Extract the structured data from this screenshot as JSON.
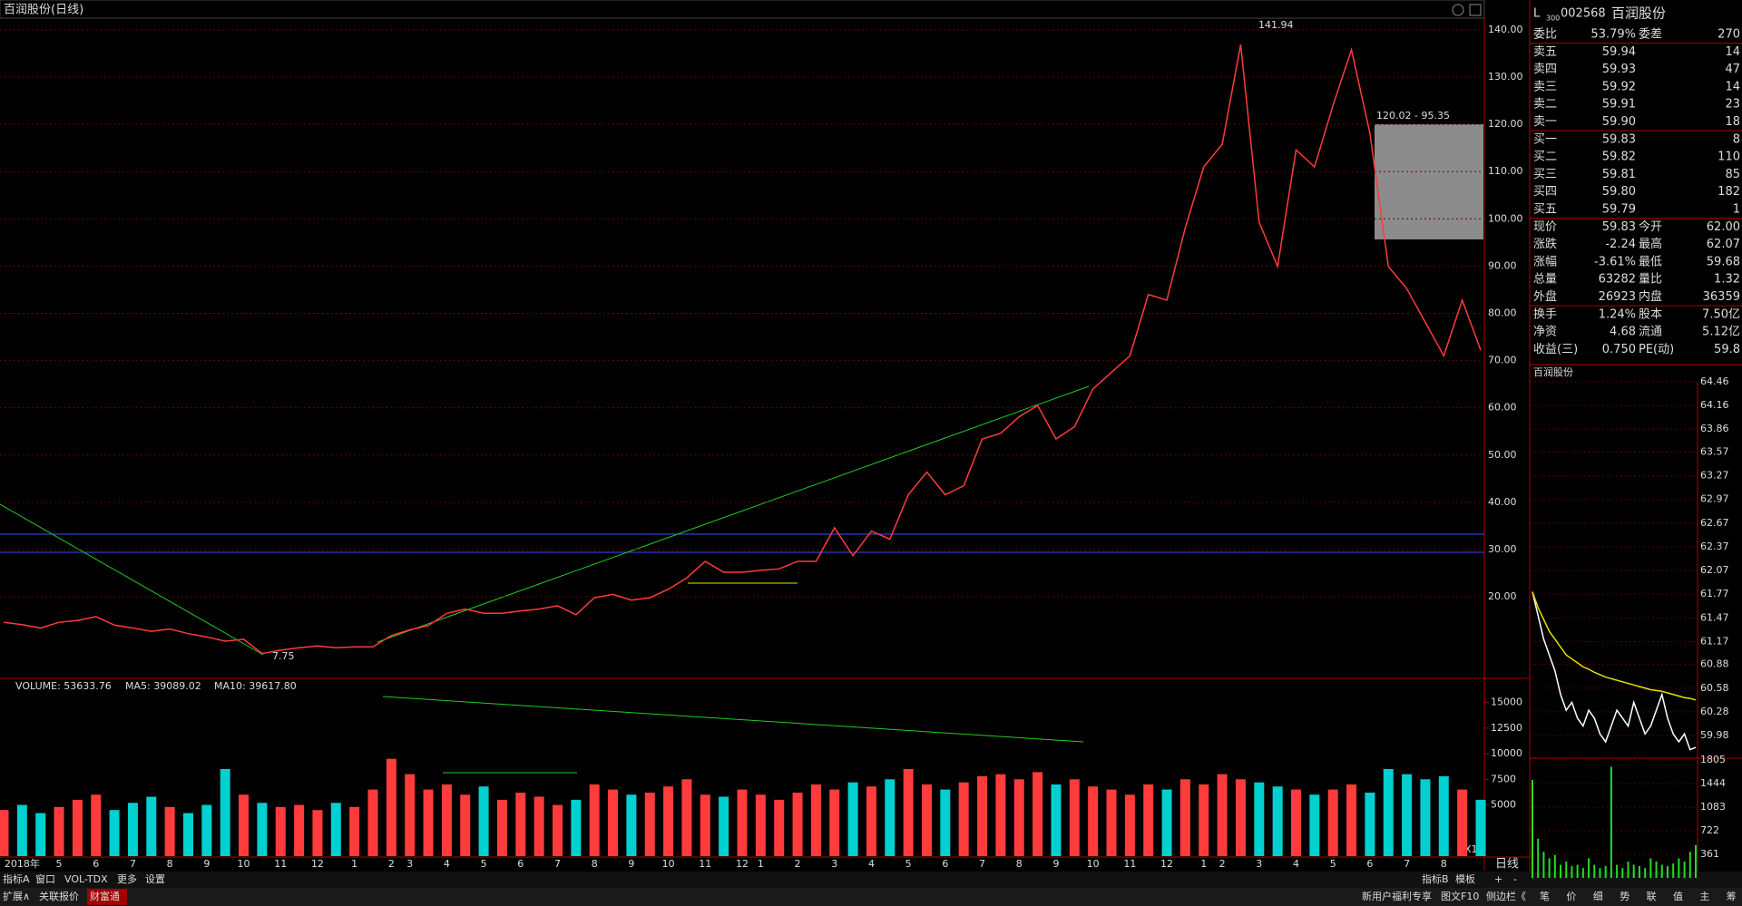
{
  "window_title": "百润股份(日线)",
  "chart_data": [
    {
      "type": "line",
      "color": "#ff3b3b",
      "grid": true,
      "up_color": "#ff3b3b",
      "down_color": "#00d0d0",
      "categories": [
        null,
        "2018年",
        null,
        "5",
        null,
        "6",
        null,
        "7",
        null,
        "8",
        null,
        "9",
        null,
        "10",
        null,
        "11",
        null,
        "12",
        null,
        "1",
        null,
        "2",
        "3",
        null,
        "4",
        null,
        "5",
        null,
        "6",
        null,
        "7",
        null,
        "8",
        null,
        "9",
        null,
        "10",
        null,
        "11",
        null,
        "12",
        "1",
        null,
        "2",
        null,
        "3",
        null,
        "4",
        null,
        "5",
        null,
        "6",
        null,
        "7",
        null,
        "8",
        null,
        "9",
        null,
        "10",
        null,
        "11",
        null,
        "12",
        null,
        "1",
        "2",
        null,
        "3",
        null,
        "4",
        null,
        "5",
        null,
        "6",
        null,
        "7",
        null,
        "8",
        null,
        null
      ],
      "values": [
        14.6,
        14.1,
        13.4,
        14.6,
        15,
        15.8,
        14,
        13.4,
        12.7,
        13.2,
        12.2,
        11.5,
        10.6,
        11,
        8,
        8.7,
        9.2,
        9.6,
        9.2,
        9.4,
        9.4,
        11.8,
        13,
        13.9,
        16.5,
        17.4,
        16.5,
        16.5,
        17,
        17.4,
        18.1,
        16.2,
        19.8,
        20.5,
        19.3,
        19.8,
        21.6,
        24,
        27.5,
        25.2,
        25.2,
        25.6,
        25.9,
        27.5,
        27.5,
        34.6,
        28.7,
        33.9,
        32.2,
        41.6,
        46.4,
        41.6,
        43.5,
        53.4,
        54.6,
        58.1,
        60.5,
        53.4,
        56,
        64,
        67.5,
        71,
        84,
        82.8,
        98.1,
        111,
        115.8,
        136.9,
        99.3,
        89.9,
        114.6,
        111,
        124,
        135.8,
        118.1,
        89.9,
        85.2,
        78.1,
        71,
        82.8,
        72.2
      ],
      "ylim": [
        3.5,
        142.1
      ],
      "yticks": [
        {
          "value": 20,
          "label": "20.00"
        },
        {
          "value": 30,
          "label": "30.00"
        },
        {
          "value": 40,
          "label": "40.00"
        },
        {
          "value": 50,
          "label": "50.00"
        },
        {
          "value": 60,
          "label": "60.00"
        },
        {
          "value": 70,
          "label": "70.00"
        },
        {
          "value": 80,
          "label": "80.00"
        },
        {
          "value": 90,
          "label": "90.00"
        },
        {
          "value": 100,
          "label": "100.00"
        },
        {
          "value": 110,
          "label": "110.00"
        },
        {
          "value": 120,
          "label": "120.00"
        },
        {
          "value": 130,
          "label": "130.00"
        },
        {
          "value": 140,
          "label": "140.00"
        }
      ],
      "peak_label": "141.94",
      "low_label": "7.75",
      "box_label": "120.02 - 95.35"
    },
    {
      "type": "bar",
      "title": "VOLUME: 53633.76",
      "ma5_label": "MA5: 39089.02",
      "ma10_label": "MA10: 39617.80",
      "scale_label": "X10",
      "values": [
        4500,
        5000,
        4200,
        4800,
        5500,
        6000,
        4500,
        5200,
        5800,
        4800,
        4200,
        5000,
        8500,
        6000,
        5200,
        4800,
        5000,
        4500,
        5200,
        4800,
        6500,
        9500,
        8000,
        6500,
        7000,
        6000,
        6800,
        5500,
        6200,
        5800,
        5000,
        5500,
        7000,
        6500,
        6000,
        6200,
        6800,
        7500,
        6000,
        5800,
        6500,
        6000,
        5500,
        6200,
        7000,
        6500,
        7200,
        6800,
        7500,
        8500,
        7000,
        6500,
        7200,
        7800,
        8000,
        7500,
        8200,
        7000,
        7500,
        6800,
        6500,
        6000,
        7000,
        6500,
        7500,
        7000,
        8000,
        7500,
        7200,
        6800,
        6500,
        6000,
        6500,
        7000,
        6200,
        8500,
        8000,
        7500,
        7800,
        6500,
        5500
      ],
      "ylim": [
        0,
        17000
      ],
      "yticks": [
        5000,
        7500,
        10000,
        12500,
        15000
      ]
    },
    {
      "type": "line",
      "title": "百润股份",
      "series": [
        {
          "color": "#ffffff",
          "values": [
            61.8,
            61.5,
            61.2,
            61.0,
            60.8,
            60.5,
            60.3,
            60.4,
            60.2,
            60.1,
            60.3,
            60.2,
            60.0,
            59.9,
            60.1,
            60.3,
            60.2,
            60.1,
            60.4,
            60.2,
            60.0,
            60.1,
            60.3,
            60.5,
            60.2,
            60.0,
            59.9,
            60.0,
            59.8,
            59.83
          ]
        },
        {
          "color": "#e8e000",
          "values": [
            61.8,
            61.6,
            61.45,
            61.3,
            61.2,
            61.1,
            61.0,
            60.95,
            60.9,
            60.85,
            60.82,
            60.78,
            60.75,
            60.72,
            60.7,
            60.68,
            60.66,
            60.64,
            60.62,
            60.6,
            60.58,
            60.56,
            60.55,
            60.54,
            60.52,
            60.5,
            60.48,
            60.46,
            60.45,
            60.43
          ]
        }
      ],
      "ylim": [
        59.98,
        64.46
      ],
      "yticks": [
        64.46,
        64.16,
        63.86,
        63.57,
        63.27,
        62.97,
        62.67,
        62.37,
        62.07,
        61.77,
        61.47,
        61.17,
        60.88,
        60.58,
        60.28,
        59.98
      ]
    },
    {
      "type": "bar",
      "color": "#22dd22",
      "values": [
        1500,
        600,
        400,
        300,
        350,
        200,
        250,
        180,
        200,
        150,
        300,
        200,
        150,
        180,
        1700,
        200,
        150,
        250,
        200,
        180,
        150,
        300,
        250,
        200,
        180,
        220,
        300,
        250,
        400,
        500
      ],
      "ylim": [
        0,
        1805
      ],
      "yticks": [
        1805,
        1444,
        1083,
        722,
        361
      ]
    }
  ],
  "quote": {
    "market": "L",
    "index": "300",
    "code": "002568",
    "name": "百润股份",
    "ratio": {
      "label": "委比",
      "value": "53.79%",
      "label2": "委差",
      "value2": "270"
    },
    "sell": [
      {
        "label": "卖五",
        "price": "59.94",
        "volume": "14"
      },
      {
        "label": "卖四",
        "price": "59.93",
        "volume": "47"
      },
      {
        "label": "卖三",
        "price": "59.92",
        "volume": "14"
      },
      {
        "label": "卖二",
        "price": "59.91",
        "volume": "23"
      },
      {
        "label": "卖一",
        "price": "59.90",
        "volume": "18"
      }
    ],
    "buy": [
      {
        "label": "买一",
        "price": "59.83",
        "volume": "8"
      },
      {
        "label": "买二",
        "price": "59.82",
        "volume": "110"
      },
      {
        "label": "买三",
        "price": "59.81",
        "volume": "85"
      },
      {
        "label": "买四",
        "price": "59.80",
        "volume": "182"
      },
      {
        "label": "买五",
        "price": "59.79",
        "volume": "1"
      }
    ],
    "stats": [
      {
        "label": "现价",
        "value": "59.83",
        "color": "#22dd22",
        "label2": "今开",
        "value2": "62.00",
        "color2": "#22dd22"
      },
      {
        "label": "涨跌",
        "value": "-2.24",
        "color": "#22dd22",
        "label2": "最高",
        "value2": "62.07",
        "color2": "#ffffff"
      },
      {
        "label": "涨幅",
        "value": "-3.61%",
        "color": "#22dd22",
        "label2": "最低",
        "value2": "59.68",
        "color2": "#22dd22"
      },
      {
        "label": "总量",
        "value": "63282",
        "color": "#e8e000",
        "label2": "量比",
        "value2": "1.32",
        "color2": "#ff3b3b"
      },
      {
        "label": "外盘",
        "value": "26923",
        "color": "#ff3b3b",
        "label2": "内盘",
        "value2": "36359",
        "color2": "#22dd22"
      },
      {
        "label": "换手",
        "value": "1.24%",
        "color": "#ffffff",
        "label2": "股本",
        "value2": "7.50亿",
        "color2": "#ffffff"
      },
      {
        "label": "净资",
        "value": "4.68",
        "color": "#ffffff",
        "label2": "流通",
        "value2": "5.12亿",
        "color2": "#ffffff"
      },
      {
        "label": "收益(三)",
        "value": "0.750",
        "color": "#ffffff",
        "label2": "PE(动)",
        "value2": "59.8",
        "color2": "#ffffff"
      }
    ]
  },
  "toolbar": {
    "left": [
      "指标A",
      "窗口",
      "VOL-TDX",
      "更多",
      "设置"
    ],
    "right": [
      "指标B",
      "模板",
      "+",
      "-"
    ],
    "period": "日线"
  },
  "bottom_bar": {
    "left": [
      "扩展∧",
      "关联报价",
      "财富通"
    ],
    "right": [
      "新用户福利专享",
      "图文F10",
      "侧边栏《"
    ],
    "tabs": [
      "笔",
      "价",
      "细",
      "势",
      "联",
      "值",
      "主",
      "筹"
    ]
  }
}
